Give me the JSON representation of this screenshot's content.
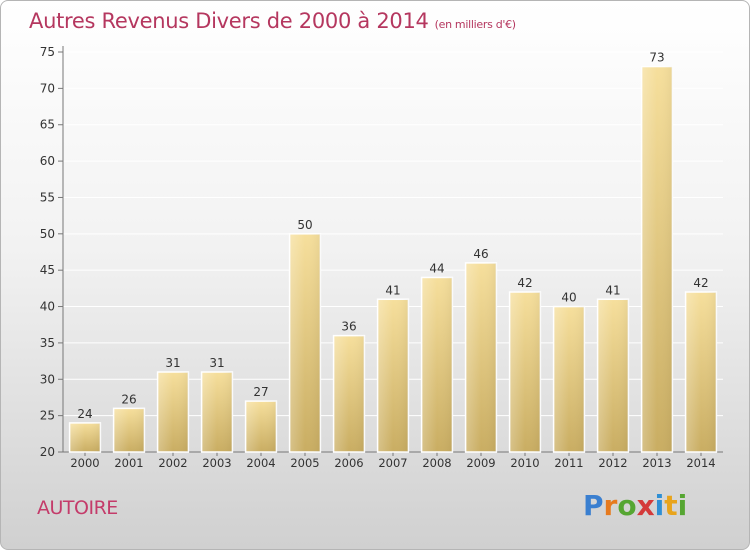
{
  "header": {
    "title": "Autres Revenus Divers de 2000 à 2014",
    "subtitle": "(en milliers d'€)"
  },
  "footer": {
    "commune": "AUTOIRE",
    "brand": "Proxiti",
    "brand_letters": [
      "P",
      "r",
      "o",
      "x",
      "i",
      "t",
      "i"
    ],
    "brand_colors": [
      "#3a7fd0",
      "#e67a1e",
      "#56a632",
      "#d43a3a",
      "#2f8fd4",
      "#e8a41c",
      "#56a632"
    ]
  },
  "colors": {
    "bar_top": "#f6df9c",
    "bar_bottom": "#c9ad62",
    "title": "#b5375f",
    "grid": "#ffffff"
  },
  "chart_data": {
    "type": "bar",
    "title": "Autres Revenus Divers de 2000 à 2014",
    "xlabel": "",
    "ylabel": "",
    "ylim": [
      20,
      75
    ],
    "yticks": [
      20,
      25,
      30,
      35,
      40,
      45,
      50,
      55,
      60,
      65,
      70,
      75
    ],
    "grid": true,
    "categories": [
      "2000",
      "2001",
      "2002",
      "2003",
      "2004",
      "2005",
      "2006",
      "2007",
      "2008",
      "2009",
      "2010",
      "2011",
      "2012",
      "2013",
      "2014"
    ],
    "values": [
      24,
      26,
      31,
      31,
      27,
      50,
      36,
      41,
      44,
      46,
      42,
      40,
      41,
      73,
      42
    ]
  }
}
